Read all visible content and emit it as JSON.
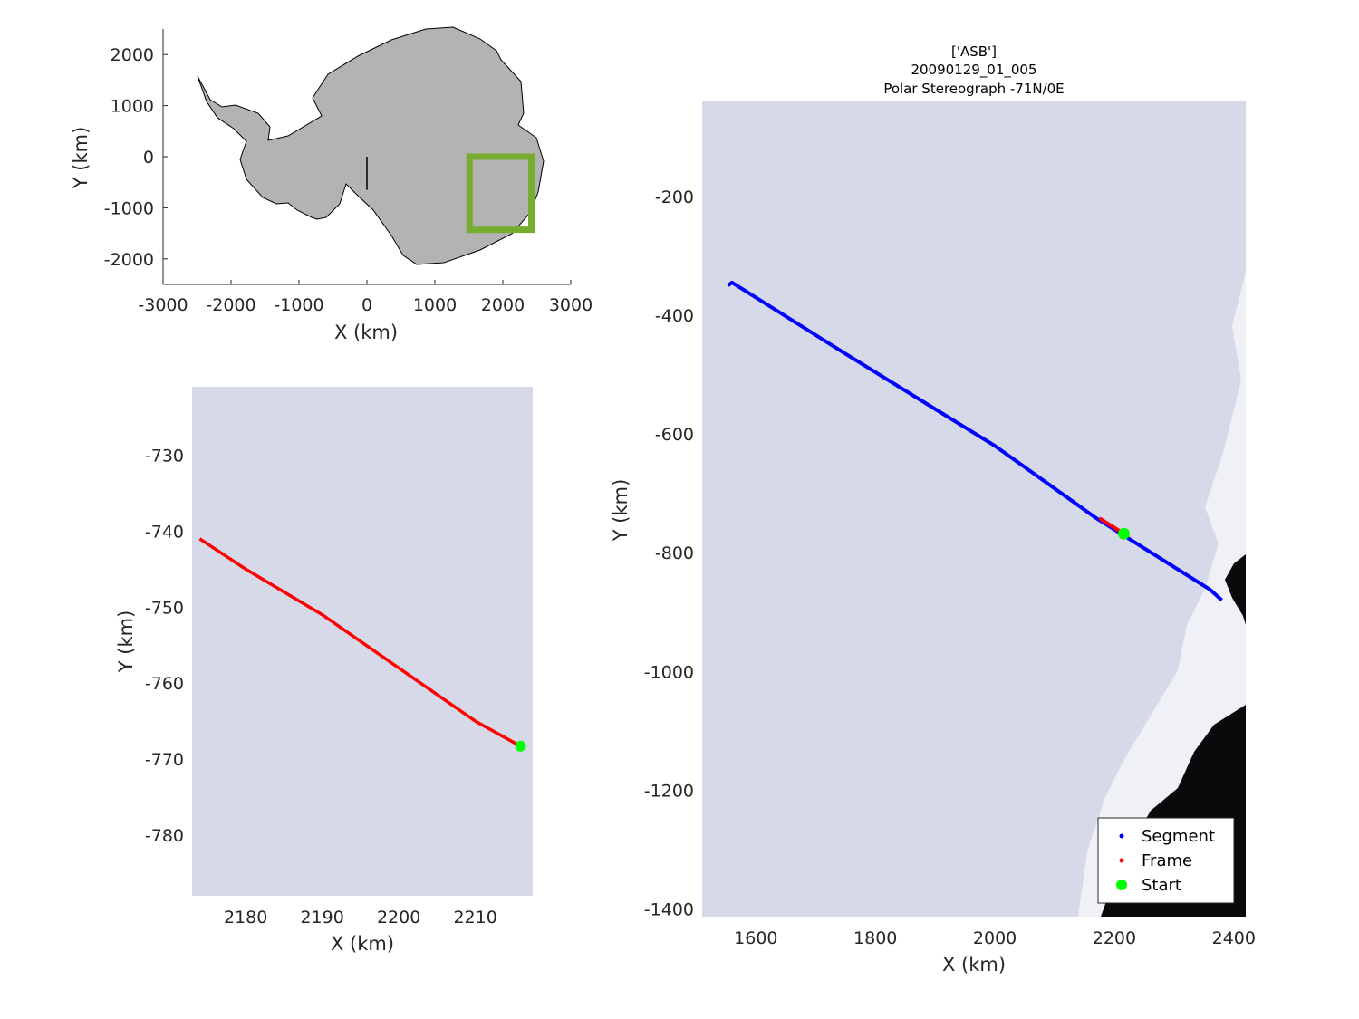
{
  "colors": {
    "land": "#b3b3b3",
    "ice": "#d6d9e8",
    "ocean": "#0a0a0c",
    "segment": "#0000ff",
    "frame": "#ff0000",
    "start": "#00ff00",
    "bbox": "#77ac30"
  },
  "overview": {
    "xlabel": "X (km)",
    "ylabel": "Y (km)",
    "x_ticks": [
      "-3000",
      "-2000",
      "-1000",
      "0",
      "1000",
      "2000",
      "3000"
    ],
    "y_ticks": [
      "2000",
      "1000",
      "0",
      "-1000",
      "-2000"
    ],
    "xlim": [
      -3000,
      3000
    ],
    "ylim": [
      -2500,
      2500
    ],
    "bbox": {
      "x": [
        1510,
        2420
      ],
      "y": [
        -1430,
        0
      ]
    }
  },
  "zoom": {
    "xlabel": "X (km)",
    "ylabel": "Y (km)",
    "x_ticks": [
      "2180",
      "2190",
      "2200",
      "2210"
    ],
    "y_ticks": [
      "-730",
      "-740",
      "-750",
      "-760",
      "-770",
      "-780"
    ],
    "xlim": [
      2173,
      2217.5
    ],
    "ylim": [
      -788,
      -721
    ],
    "frame_path": {
      "x": [
        2174,
        2180,
        2190,
        2200,
        2210,
        2215.9
      ],
      "y": [
        -741,
        -745,
        -751,
        -758,
        -765,
        -768.3
      ]
    },
    "start": {
      "x": 2215.9,
      "y": -768.3
    }
  },
  "main": {
    "title": [
      "['ASB']",
      "20090129_01_005",
      "Polar Stereograph -71N/0E"
    ],
    "xlabel": "X (km)",
    "ylabel": "Y (km)",
    "x_ticks": [
      "1600",
      "1800",
      "2000",
      "2200",
      "2400"
    ],
    "y_ticks": [
      "-200",
      "-400",
      "-600",
      "-800",
      "-1000",
      "-1200",
      "-1400"
    ],
    "xlim": [
      1510,
      2420
    ],
    "ylim": [
      -1413,
      -40
    ],
    "segment_path": {
      "x": [
        1553,
        1560,
        1750,
        2000,
        2170,
        2360,
        2380
      ],
      "y": [
        -350,
        -345,
        -465,
        -620,
        -742,
        -862,
        -880
      ]
    },
    "frame_path": {
      "x": [
        2175,
        2216
      ],
      "y": [
        -742,
        -768
      ]
    },
    "start": {
      "x": 2216,
      "y": -768
    },
    "legend": {
      "segment": "Segment",
      "frame": "Frame",
      "start": "Start"
    }
  }
}
